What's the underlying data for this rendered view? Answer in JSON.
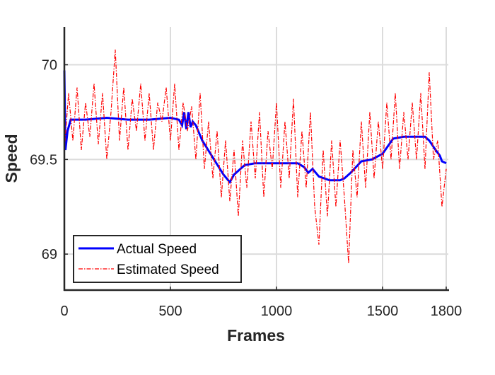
{
  "chart_data": {
    "type": "line",
    "xlabel": "Frames",
    "ylabel": "Speed",
    "xlim": [
      0,
      1800
    ],
    "xticks": [
      0,
      500,
      1000,
      1500,
      1800
    ],
    "ylim": [
      68.81,
      70.2
    ],
    "yticks": [
      69,
      69.5,
      70
    ],
    "grid": true,
    "legend": "lower-left",
    "series": [
      {
        "name": "Actual Speed",
        "color": "#0000ff",
        "style": "solid",
        "x": [
          0,
          5,
          15,
          30,
          100,
          200,
          300,
          400,
          500,
          540,
          555,
          565,
          575,
          585,
          595,
          605,
          620,
          650,
          700,
          750,
          780,
          800,
          850,
          900,
          1000,
          1100,
          1130,
          1150,
          1170,
          1200,
          1250,
          1300,
          1320,
          1350,
          1400,
          1450,
          1500,
          1550,
          1600,
          1650,
          1700,
          1720,
          1750,
          1770,
          1780,
          1800
        ],
        "values": [
          69.97,
          69.55,
          69.65,
          69.71,
          69.71,
          69.72,
          69.71,
          69.71,
          69.72,
          69.71,
          69.68,
          69.75,
          69.66,
          69.75,
          69.67,
          69.7,
          69.68,
          69.6,
          69.51,
          69.42,
          69.38,
          69.42,
          69.47,
          69.48,
          69.48,
          69.48,
          69.46,
          69.43,
          69.45,
          69.41,
          69.39,
          69.39,
          69.4,
          69.43,
          69.49,
          69.5,
          69.53,
          69.61,
          69.62,
          69.62,
          69.62,
          69.6,
          69.55,
          69.52,
          69.49,
          69.48
        ]
      },
      {
        "name": "Estimated Speed",
        "color": "#ff0000",
        "style": "dashdot",
        "x": [
          0,
          20,
          40,
          60,
          80,
          100,
          120,
          140,
          160,
          180,
          200,
          220,
          240,
          260,
          280,
          300,
          320,
          340,
          360,
          380,
          400,
          420,
          440,
          460,
          480,
          500,
          520,
          540,
          560,
          580,
          600,
          620,
          640,
          660,
          680,
          700,
          720,
          740,
          760,
          780,
          800,
          820,
          840,
          860,
          880,
          900,
          920,
          940,
          960,
          980,
          1000,
          1020,
          1040,
          1060,
          1080,
          1100,
          1120,
          1140,
          1160,
          1180,
          1200,
          1220,
          1240,
          1260,
          1280,
          1300,
          1320,
          1340,
          1360,
          1380,
          1400,
          1420,
          1440,
          1460,
          1480,
          1500,
          1520,
          1540,
          1560,
          1580,
          1600,
          1620,
          1640,
          1660,
          1680,
          1700,
          1720,
          1740,
          1760,
          1780,
          1800
        ],
        "values": [
          69.55,
          69.85,
          69.6,
          69.88,
          69.55,
          69.8,
          69.62,
          69.9,
          69.58,
          69.85,
          69.5,
          69.75,
          70.08,
          69.6,
          69.88,
          69.55,
          69.82,
          69.65,
          69.9,
          69.6,
          69.85,
          69.55,
          69.8,
          69.7,
          69.88,
          69.6,
          69.9,
          69.55,
          69.8,
          69.65,
          69.78,
          69.5,
          69.85,
          69.45,
          69.7,
          69.4,
          69.65,
          69.3,
          69.6,
          69.28,
          69.55,
          69.2,
          69.6,
          69.35,
          69.7,
          69.4,
          69.75,
          69.3,
          69.65,
          69.45,
          69.8,
          69.35,
          69.7,
          69.4,
          69.82,
          69.3,
          69.65,
          69.35,
          69.75,
          69.25,
          69.05,
          69.55,
          69.2,
          69.6,
          69.25,
          69.6,
          69.3,
          68.95,
          69.55,
          69.3,
          69.7,
          69.35,
          69.75,
          69.4,
          69.7,
          69.45,
          69.8,
          69.5,
          69.85,
          69.45,
          69.75,
          69.5,
          69.8,
          69.5,
          69.85,
          69.45,
          69.96,
          69.5,
          69.6,
          69.25,
          69.45
        ]
      }
    ]
  }
}
